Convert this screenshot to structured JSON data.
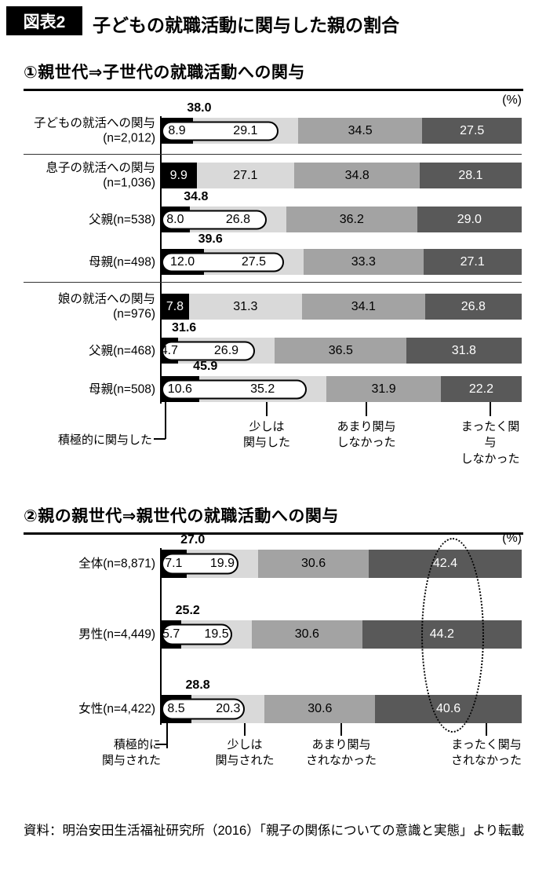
{
  "header": {
    "badge": "図表2",
    "title": "子どもの就職活動に関与した親の割合"
  },
  "chart_data": [
    {
      "type": "bar",
      "stacked": true,
      "orientation": "horizontal",
      "x_range": [
        0,
        100
      ],
      "heading": "①親世代⇒子世代の就職活動への関与",
      "unit": "(%)",
      "colors": [
        "#000000",
        "#d9d9d9",
        "#a3a3a3",
        "#595959"
      ],
      "legend": [
        "積極的に関与した",
        "少しは\n関与した",
        "あまり関与\nしなかった",
        "まったく関与\nしなかった"
      ],
      "rows": [
        {
          "label": "子どもの就活への関与\n(n=2,012)",
          "sum": "38.0",
          "values": [
            8.9,
            29.1,
            34.5,
            27.5
          ],
          "oval": true
        },
        {
          "label": "息子の就活への関与\n(n=1,036)",
          "sum": "",
          "values": [
            9.9,
            27.1,
            34.8,
            28.1
          ],
          "oval": false
        },
        {
          "label": "父親(n=538)",
          "sum": "34.8",
          "values": [
            8.0,
            26.8,
            36.2,
            29.0
          ],
          "oval": true
        },
        {
          "label": "母親(n=498)",
          "sum": "39.6",
          "values": [
            12.0,
            27.5,
            33.3,
            27.1
          ],
          "oval": true
        },
        {
          "label": "娘の就活への関与\n(n=976)",
          "sum": "",
          "values": [
            7.8,
            31.3,
            34.1,
            26.8
          ],
          "oval": false
        },
        {
          "label": "父親(n=468)",
          "sum": "31.6",
          "values": [
            4.7,
            26.9,
            36.5,
            31.8
          ],
          "oval": true
        },
        {
          "label": "母親(n=508)",
          "sum": "45.9",
          "values": [
            10.6,
            35.2,
            31.9,
            22.2
          ],
          "oval": true
        }
      ]
    },
    {
      "type": "bar",
      "stacked": true,
      "orientation": "horizontal",
      "x_range": [
        0,
        100
      ],
      "heading": "②親の親世代⇒親世代の就職活動への関与",
      "unit": "(%)",
      "colors": [
        "#000000",
        "#d9d9d9",
        "#a3a3a3",
        "#595959"
      ],
      "legend": [
        "積極的に\n関与された",
        "少しは\n関与された",
        "あまり関与\nされなかった",
        "まったく関与\nされなかった"
      ],
      "rows": [
        {
          "label": "全体(n=8,871)",
          "sum": "27.0",
          "values": [
            7.1,
            19.9,
            30.6,
            42.4
          ],
          "oval": true
        },
        {
          "label": "男性(n=4,449)",
          "sum": "25.2",
          "values": [
            5.7,
            19.5,
            30.6,
            44.2
          ],
          "oval": true
        },
        {
          "label": "女性(n=4,422)",
          "sum": "28.8",
          "values": [
            8.5,
            20.3,
            30.6,
            40.6
          ],
          "oval": true
        }
      ]
    }
  ],
  "footer": {
    "source": "資料：明治安田生活福祉研究所（2016）「親子の関係についての意識と実態」より転載"
  }
}
